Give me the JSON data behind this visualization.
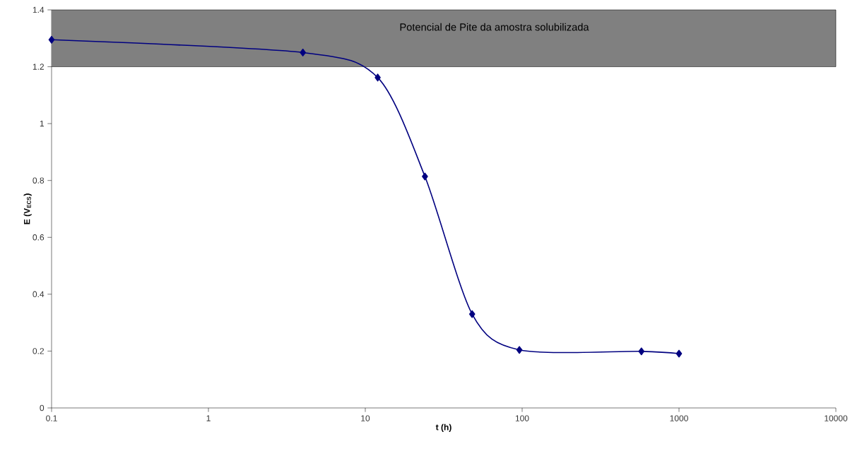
{
  "chart_data": {
    "type": "line",
    "xlabel": "t (h)",
    "ylabel": "E (V$_{ECS}$)",
    "x": [
      0.1,
      4,
      12,
      24,
      48,
      96,
      576,
      1000
    ],
    "series": [
      {
        "color": "#000080",
        "values": [
          1.295,
          1.25,
          1.162,
          0.814,
          0.33,
          0.204,
          0.199,
          0.191
        ]
      }
    ],
    "log": "x",
    "xlim": [
      0.1,
      10000
    ],
    "ylim": [
      0,
      1.4
    ],
    "xticks": [
      0.1,
      1,
      10,
      100,
      1000,
      10000
    ],
    "yticks": [
      0,
      0.2,
      0.4,
      0.6,
      0.8,
      1,
      1.2,
      1.4
    ],
    "bands": [
      {
        "axis": "y",
        "from": 1.2,
        "to": 1.4,
        "label": "Potencial de Pite da amostra solubilizada",
        "color": "#808080"
      }
    ],
    "marker": "diamond",
    "line_style": "solid"
  }
}
